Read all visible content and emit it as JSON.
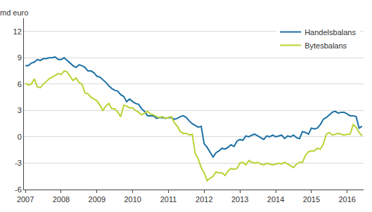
{
  "chart_data": {
    "type": "line",
    "ylabel": "md euro",
    "categories": [
      "2007",
      null,
      null,
      null,
      null,
      null,
      null,
      null,
      null,
      null,
      null,
      null,
      "2008",
      null,
      null,
      null,
      null,
      null,
      null,
      null,
      null,
      null,
      null,
      null,
      "2009",
      null,
      null,
      null,
      null,
      null,
      null,
      null,
      null,
      null,
      null,
      null,
      "2010",
      null,
      null,
      null,
      null,
      null,
      null,
      null,
      null,
      null,
      null,
      null,
      "2011",
      null,
      null,
      null,
      null,
      null,
      null,
      null,
      null,
      null,
      null,
      null,
      "2012",
      null,
      null,
      null,
      null,
      null,
      null,
      null,
      null,
      null,
      null,
      null,
      "2013",
      null,
      null,
      null,
      null,
      null,
      null,
      null,
      null,
      null,
      null,
      null,
      "2014",
      null,
      null,
      null,
      null,
      null,
      null,
      null,
      null,
      null,
      null,
      null,
      "2015",
      null,
      null,
      null,
      null,
      null,
      null,
      null,
      null,
      null,
      null,
      null,
      "2016",
      null,
      null,
      null,
      null,
      null
    ],
    "series": [
      {
        "name": "Handelsbalans",
        "color": "#1b6fa3",
        "values": [
          8.1,
          8.1,
          8.4,
          8.5,
          8.8,
          8.7,
          8.9,
          8.9,
          9.0,
          9.0,
          9.1,
          8.8,
          8.8,
          9.0,
          8.7,
          8.4,
          8.1,
          7.9,
          8.2,
          8.1,
          7.9,
          7.5,
          7.5,
          7.3,
          6.9,
          6.8,
          6.5,
          6.2,
          5.8,
          5.5,
          5.3,
          5.2,
          4.8,
          4.6,
          4.0,
          4.3,
          4.0,
          3.8,
          3.7,
          3.2,
          2.9,
          2.4,
          2.4,
          2.4,
          2.1,
          2.2,
          2.2,
          2.1,
          2.2,
          2.2,
          2.0,
          2.1,
          2.3,
          2.4,
          2.2,
          1.8,
          1.5,
          1.3,
          1.1,
          1.2,
          -0.8,
          -1.2,
          -1.8,
          -2.3,
          -1.8,
          -1.6,
          -1.3,
          -1.4,
          -1.2,
          -0.9,
          -1.1,
          -0.5,
          -0.3,
          -0.4,
          0.1,
          0.0,
          0.2,
          0.3,
          0.1,
          -0.1,
          -0.3,
          0.1,
          0.0,
          0.2,
          0.0,
          0.1,
          0.2,
          -0.2,
          0.1,
          0.0,
          0.2,
          -0.1,
          -0.2,
          0.6,
          0.5,
          0.3,
          1.0,
          0.9,
          1.0,
          1.4,
          2.0,
          2.2,
          2.5,
          2.8,
          2.9,
          2.7,
          2.8,
          2.8,
          2.6,
          2.4,
          2.4,
          2.3,
          1.0,
          1.2
        ]
      },
      {
        "name": "Bytesbalans",
        "color": "#b8d334",
        "values": [
          6.1,
          5.9,
          6.0,
          6.6,
          5.7,
          5.6,
          6.0,
          6.3,
          6.6,
          6.8,
          7.0,
          7.2,
          7.1,
          7.5,
          7.4,
          6.9,
          6.4,
          6.7,
          6.2,
          6.0,
          5.0,
          4.9,
          4.5,
          4.3,
          4.1,
          3.6,
          3.0,
          3.5,
          3.8,
          3.2,
          3.2,
          2.8,
          2.3,
          3.6,
          3.5,
          3.3,
          3.3,
          3.0,
          2.8,
          2.5,
          2.7,
          2.9,
          2.6,
          2.5,
          2.3,
          2.2,
          2.3,
          2.1,
          2.2,
          2.3,
          1.6,
          1.2,
          0.6,
          0.4,
          0.4,
          0.2,
          0.3,
          -1.9,
          -2.5,
          -3.5,
          -4.1,
          -5.0,
          -4.7,
          -4.5,
          -4.0,
          -4.1,
          -4.1,
          -4.4,
          -3.9,
          -3.6,
          -3.7,
          -3.6,
          -3.0,
          -2.9,
          -3.2,
          -2.7,
          -2.9,
          -3.0,
          -2.9,
          -3.1,
          -3.2,
          -3.0,
          -3.1,
          -3.2,
          -3.1,
          -3.0,
          -3.1,
          -2.9,
          -3.1,
          -3.3,
          -3.5,
          -3.1,
          -2.9,
          -2.9,
          -2.1,
          -1.7,
          -1.6,
          -1.6,
          -1.3,
          -1.4,
          -0.8,
          0.3,
          0.5,
          0.2,
          0.3,
          0.4,
          0.3,
          0.2,
          0.3,
          0.3,
          1.4,
          1.1,
          0.5,
          0.1
        ]
      }
    ],
    "ylim": [
      -6,
      13.5
    ],
    "yticks": [
      -6,
      -3,
      0,
      3,
      6,
      9,
      12
    ],
    "grid": true,
    "legend": "top right"
  }
}
